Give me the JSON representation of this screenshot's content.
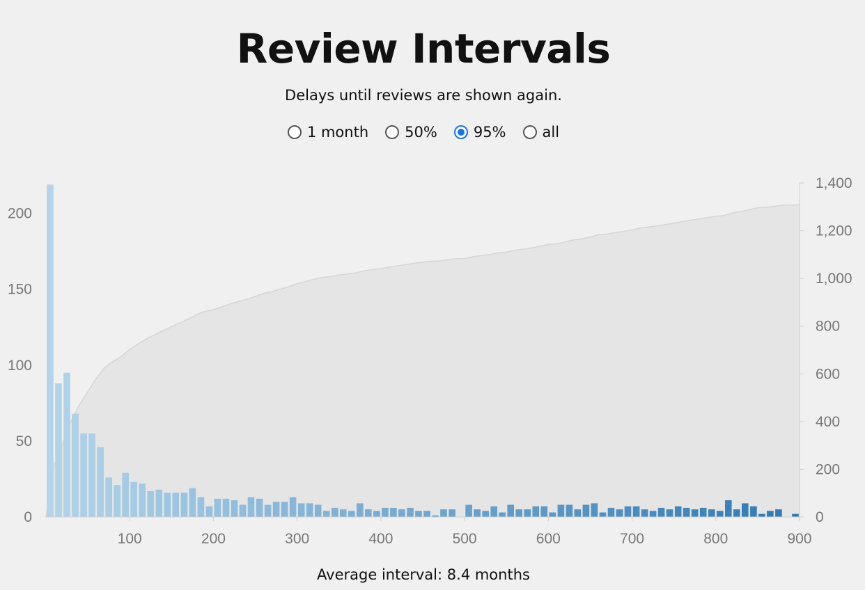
{
  "header": {
    "title": "Review Intervals",
    "subtitle": "Delays until reviews are shown again."
  },
  "range_options": [
    {
      "label": "1 month",
      "checked": false
    },
    {
      "label": "50%",
      "checked": false
    },
    {
      "label": "95%",
      "checked": true
    },
    {
      "label": "all",
      "checked": false
    }
  ],
  "footer": {
    "average_label": "Average interval:",
    "average_value": "8.4 months"
  },
  "colors": {
    "bar_light": "#b3d4ea",
    "bar_dark": "#2f79b5",
    "cumulative_fill": "#e5e5e5",
    "cumulative_line": "#d6d6d6",
    "axis": "#cfcfcf",
    "tick_text": "#777777"
  },
  "chart_data": {
    "type": "bar",
    "xlim": [
      0,
      900
    ],
    "bin_width": 10,
    "x_ticks": [
      "100",
      "200",
      "300",
      "400",
      "500",
      "600",
      "700",
      "800",
      "900"
    ],
    "x_tick_values": [
      100,
      200,
      300,
      400,
      500,
      600,
      700,
      800,
      900
    ],
    "y_ticks_left": [
      "0",
      "50",
      "100",
      "150",
      "200"
    ],
    "y_tick_values_left": [
      0,
      50,
      100,
      150,
      200
    ],
    "ylim_left": [
      0,
      220
    ],
    "y_ticks_right": [
      "0",
      "200",
      "400",
      "600",
      "800",
      "1,000",
      "1,200",
      "1,400"
    ],
    "y_tick_values_right": [
      0,
      200,
      400,
      600,
      800,
      1000,
      1200,
      1400
    ],
    "ylim_right": [
      0,
      1400
    ],
    "values": [
      219,
      88,
      95,
      68,
      55,
      55,
      46,
      26,
      21,
      29,
      23,
      22,
      17,
      18,
      16,
      16,
      16,
      19,
      13,
      7,
      12,
      12,
      11,
      8,
      13,
      12,
      8,
      10,
      10,
      13,
      9,
      9,
      8,
      4,
      6,
      5,
      4,
      9,
      5,
      4,
      6,
      6,
      5,
      6,
      4,
      4,
      1,
      5,
      5,
      0,
      8,
      5,
      4,
      7,
      3,
      8,
      5,
      5,
      7,
      7,
      3,
      8,
      8,
      5,
      8,
      9,
      3,
      6,
      5,
      7,
      7,
      5,
      4,
      6,
      5,
      7,
      6,
      5,
      6,
      5,
      4,
      11,
      5,
      9,
      7,
      2,
      4,
      5,
      0,
      2
    ],
    "series": [
      {
        "name": "",
        "type": "bar",
        "axis": "left",
        "values_ref": "values"
      },
      {
        "name": "",
        "type": "area",
        "axis": "right",
        "values_ref": "cumulative"
      }
    ]
  }
}
